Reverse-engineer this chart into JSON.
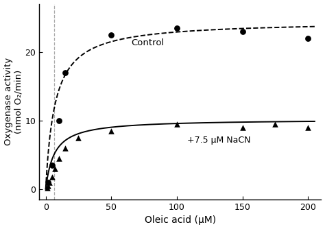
{
  "control_scatter_x": [
    2,
    5,
    10,
    15,
    50,
    100,
    150,
    200
  ],
  "control_scatter_y": [
    1.0,
    3.5,
    10.0,
    17.0,
    22.5,
    23.5,
    23.0,
    22.0
  ],
  "nacn_scatter_x": [
    1,
    2,
    3,
    5,
    7,
    10,
    15,
    25,
    50,
    100,
    150,
    175,
    200
  ],
  "nacn_scatter_y": [
    0.2,
    0.5,
    1.0,
    1.8,
    3.0,
    4.5,
    6.0,
    7.5,
    8.5,
    9.5,
    9.0,
    9.5,
    9.0
  ],
  "control_Vmax": 24.5,
  "control_Km": 7.0,
  "nacn_Vmax": 10.2,
  "nacn_Km": 6.5,
  "xlabel": "Oleic acid (μM)",
  "ylabel": "Oxygenase activity\n(nmol O₂/min)",
  "xlim": [
    -5,
    210
  ],
  "ylim": [
    -1.5,
    27
  ],
  "xticks": [
    0,
    50,
    100,
    150,
    200
  ],
  "yticks": [
    0,
    10,
    20
  ],
  "control_label": "Control",
  "nacn_label": "+7.5 μM NaCN",
  "vline_x": 6.5,
  "background_color": "#ffffff",
  "line_color": "#000000"
}
